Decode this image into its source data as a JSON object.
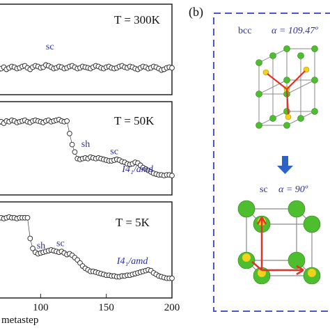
{
  "chart_data": {
    "type": "line",
    "xlabel": "metastep",
    "xlim": [
      68,
      200
    ],
    "x_ticks": [
      "100",
      "150",
      "200"
    ],
    "panels": [
      {
        "label": "T = 300K",
        "annotations": [
          {
            "text": "sc",
            "x": 104,
            "y": 0.5
          }
        ],
        "ylim": [
          0,
          1
        ],
        "series": [
          {
            "x": [
              68,
              70,
              72,
              74,
              76,
              78,
              80,
              82,
              84,
              86,
              88,
              90,
              92,
              94,
              96,
              98,
              100,
              102,
              104,
              106,
              108,
              110,
              112,
              114,
              116,
              118,
              120,
              122,
              124,
              126,
              128,
              130,
              132,
              134,
              136,
              138,
              140,
              142,
              144,
              146,
              148,
              150,
              152,
              154,
              156,
              158,
              160,
              162,
              164,
              166,
              168,
              170,
              172,
              174,
              176,
              178,
              180,
              182,
              184,
              186,
              188,
              190,
              192,
              194,
              196,
              198,
              200
            ],
            "y": [
              0.22,
              0.23,
              0.25,
              0.22,
              0.24,
              0.26,
              0.25,
              0.23,
              0.24,
              0.26,
              0.27,
              0.24,
              0.22,
              0.25,
              0.27,
              0.26,
              0.24,
              0.25,
              0.28,
              0.27,
              0.25,
              0.23,
              0.24,
              0.26,
              0.25,
              0.23,
              0.24,
              0.26,
              0.27,
              0.25,
              0.23,
              0.24,
              0.26,
              0.25,
              0.24,
              0.23,
              0.25,
              0.27,
              0.26,
              0.24,
              0.23,
              0.25,
              0.26,
              0.24,
              0.23,
              0.24,
              0.26,
              0.27,
              0.25,
              0.24,
              0.26,
              0.25,
              0.23,
              0.22,
              0.24,
              0.26,
              0.25,
              0.23,
              0.24,
              0.26,
              0.25,
              0.23,
              0.21,
              0.22,
              0.24,
              0.25,
              0.24
            ]
          }
        ]
      },
      {
        "label": "T = 50K",
        "annotations": [
          {
            "text": "sh",
            "x": 131,
            "y": 0.52
          },
          {
            "text": "sc",
            "x": 153,
            "y": 0.42
          },
          {
            "text": "I4₁/amd",
            "x": 162,
            "y": 0.18
          }
        ],
        "ylim": [
          0,
          1
        ],
        "series": [
          {
            "x": [
              68,
              70,
              72,
              74,
              76,
              78,
              80,
              82,
              84,
              86,
              88,
              90,
              92,
              94,
              96,
              98,
              100,
              102,
              104,
              106,
              108,
              110,
              112,
              114,
              116,
              118,
              120,
              122,
              124,
              126,
              128,
              130,
              132,
              134,
              136,
              138,
              140,
              142,
              144,
              146,
              148,
              150,
              152,
              154,
              156,
              158,
              160,
              162,
              164,
              166,
              168,
              170,
              172,
              174,
              176,
              178,
              180,
              182,
              184,
              186,
              188,
              190,
              192,
              194,
              196,
              198,
              200
            ],
            "y": [
              0.85,
              0.86,
              0.84,
              0.87,
              0.86,
              0.88,
              0.87,
              0.85,
              0.86,
              0.87,
              0.88,
              0.86,
              0.85,
              0.87,
              0.88,
              0.87,
              0.86,
              0.85,
              0.87,
              0.88,
              0.86,
              0.87,
              0.88,
              0.89,
              0.87,
              0.86,
              0.87,
              0.7,
              0.55,
              0.45,
              0.36,
              0.35,
              0.36,
              0.37,
              0.36,
              0.38,
              0.37,
              0.36,
              0.37,
              0.36,
              0.35,
              0.34,
              0.33,
              0.33,
              0.34,
              0.35,
              0.34,
              0.32,
              0.31,
              0.29,
              0.28,
              0.29,
              0.31,
              0.3,
              0.27,
              0.24,
              0.22,
              0.2,
              0.18,
              0.16,
              0.15,
              0.14,
              0.14,
              0.13,
              0.14,
              0.14,
              0.13
            ]
          }
        ]
      },
      {
        "label": "T = 5K",
        "annotations": [
          {
            "text": "sh",
            "x": 97,
            "y": 0.52
          },
          {
            "text": "sc",
            "x": 112,
            "y": 0.55
          },
          {
            "text": "I4₁/amd",
            "x": 158,
            "y": 0.32
          }
        ],
        "ylim": [
          0,
          1
        ],
        "series": [
          {
            "x": [
              68,
              70,
              72,
              74,
              76,
              78,
              80,
              82,
              84,
              86,
              88,
              90,
              92,
              94,
              96,
              98,
              100,
              102,
              104,
              106,
              108,
              110,
              112,
              114,
              116,
              118,
              120,
              122,
              124,
              126,
              128,
              130,
              132,
              134,
              136,
              138,
              140,
              142,
              144,
              146,
              148,
              150,
              152,
              154,
              156,
              158,
              160,
              162,
              164,
              166,
              168,
              170,
              172,
              174,
              176,
              178,
              180,
              182,
              184,
              186,
              188,
              190,
              192,
              194,
              196,
              198,
              200
            ],
            "y": [
              0.92,
              0.92,
              0.91,
              0.92,
              0.93,
              0.92,
              0.92,
              0.91,
              0.92,
              0.92,
              0.92,
              0.92,
              0.65,
              0.52,
              0.47,
              0.45,
              0.46,
              0.47,
              0.48,
              0.49,
              0.5,
              0.49,
              0.48,
              0.47,
              0.48,
              0.46,
              0.44,
              0.45,
              0.43,
              0.4,
              0.37,
              0.33,
              0.29,
              0.26,
              0.24,
              0.22,
              0.22,
              0.21,
              0.2,
              0.19,
              0.18,
              0.17,
              0.17,
              0.16,
              0.16,
              0.15,
              0.15,
              0.16,
              0.16,
              0.17,
              0.17,
              0.18,
              0.19,
              0.2,
              0.21,
              0.22,
              0.23,
              0.24,
              0.23,
              0.2,
              0.18,
              0.16,
              0.15,
              0.14,
              0.13,
              0.13,
              0.13
            ]
          }
        ]
      }
    ],
    "inset": {
      "panel_label": "(b)",
      "top": {
        "structure": "bcc",
        "angle": "α = 109.47º"
      },
      "arrow": "down",
      "bottom": {
        "structure": "sc",
        "angle": "α = 90º"
      }
    }
  },
  "colors": {
    "marker_edge": "#222222",
    "marker_fill": "#ffffff",
    "annotation": "#2b2fa8",
    "dashed_box": "#4a57c9",
    "atom_green": "#4dbf2e",
    "atom_yellow": "#f2d21c",
    "bond_red": "#e0322a",
    "arrow_blue": "#2d63c8"
  }
}
